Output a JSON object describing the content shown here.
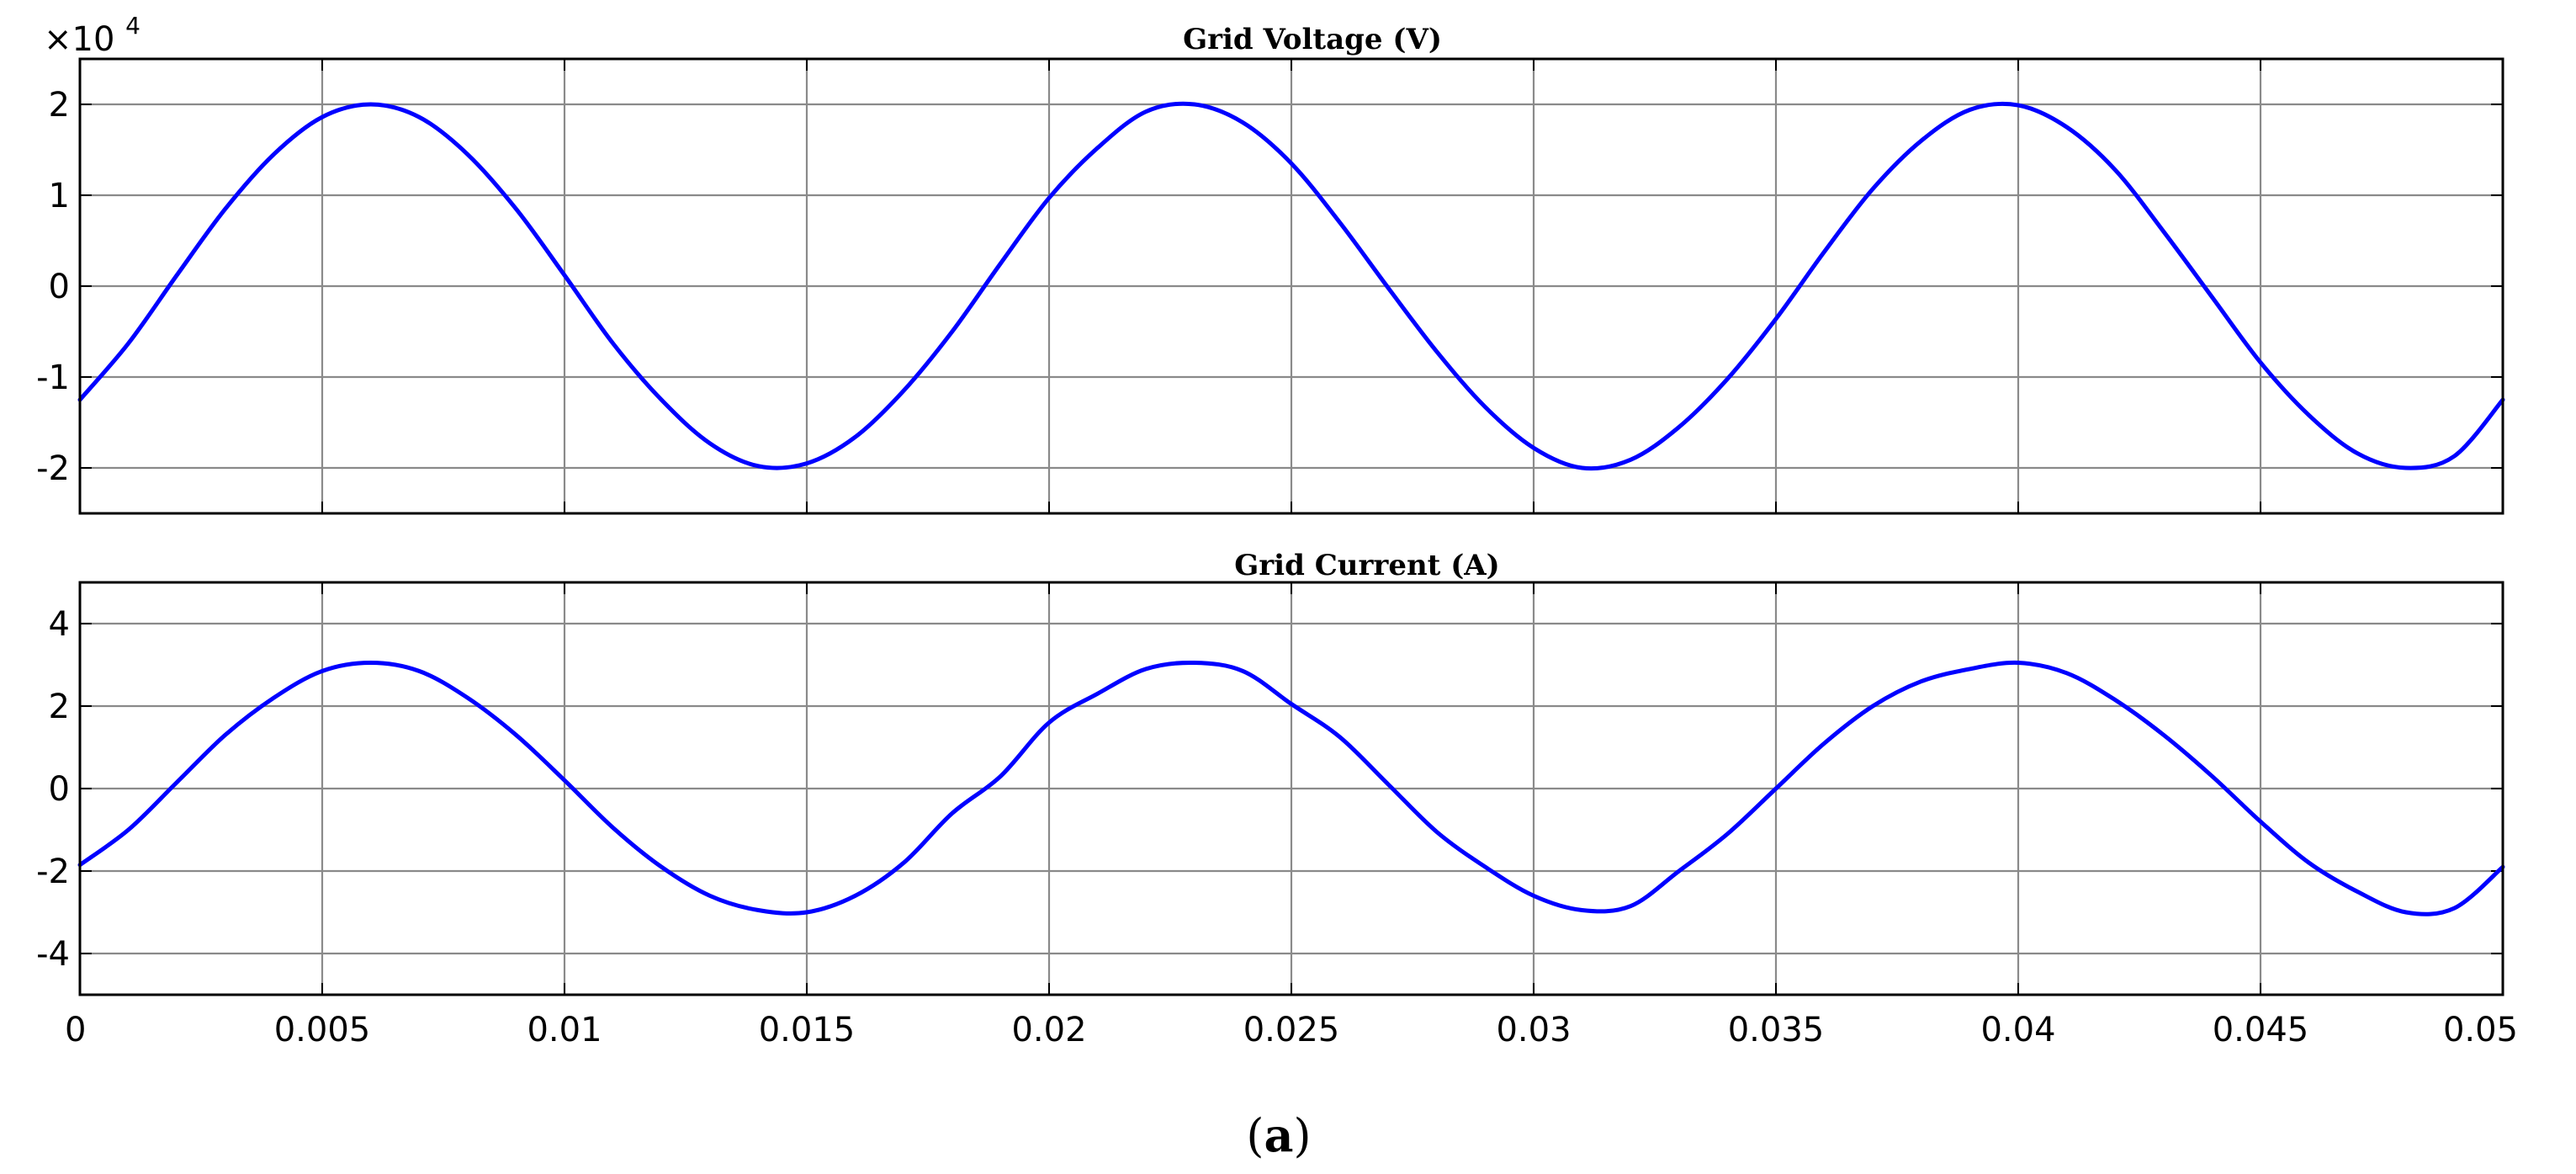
{
  "figure": {
    "caption_open": "(",
    "caption_letter": "a",
    "caption_close": ")"
  },
  "colors": {
    "series": "#0000ff",
    "grid": "#8a8a8a",
    "axes": "#000000"
  },
  "chart_data": [
    {
      "type": "line",
      "title": "Grid Voltage (V)",
      "xlabel": "",
      "ylabel": "",
      "y_multiplier": {
        "base": "×10",
        "exponent": "4"
      },
      "xlim": [
        0,
        0.05
      ],
      "ylim": [
        -2.5,
        2.5
      ],
      "x_ticks": [
        0,
        0.005,
        0.01,
        0.015,
        0.02,
        0.025,
        0.03,
        0.035,
        0.04,
        0.045,
        0.05
      ],
      "x_tick_labels_shown": false,
      "y_ticks": [
        -2,
        -1,
        0,
        1,
        2
      ],
      "y_tick_labels": [
        "-2",
        "-1",
        "0",
        "1",
        "2"
      ],
      "grid": true,
      "series": [
        {
          "color": "#0000ff",
          "x": [
            0,
            0.001,
            0.002,
            0.003,
            0.004,
            0.005,
            0.006,
            0.007,
            0.008,
            0.009,
            0.01,
            0.011,
            0.012,
            0.013,
            0.014,
            0.015,
            0.016,
            0.017,
            0.018,
            0.019,
            0.02,
            0.021,
            0.022,
            0.023,
            0.024,
            0.025,
            0.026,
            0.027,
            0.028,
            0.029,
            0.03,
            0.031,
            0.032,
            0.033,
            0.034,
            0.035,
            0.036,
            0.037,
            0.038,
            0.039,
            0.04,
            0.041,
            0.042,
            0.043,
            0.044,
            0.045,
            0.046,
            0.047,
            0.048,
            0.049,
            0.05
          ],
          "values": [
            -1.25,
            -0.63,
            0.12,
            0.85,
            1.45,
            1.86,
            2.0,
            1.86,
            1.45,
            0.85,
            0.12,
            -0.63,
            -1.25,
            -1.73,
            -1.98,
            -1.95,
            -1.66,
            -1.15,
            -0.5,
            0.25,
            0.97,
            1.52,
            1.92,
            2.0,
            1.8,
            1.35,
            0.7,
            -0.02,
            -0.72,
            -1.33,
            -1.78,
            -2.0,
            -1.91,
            -1.55,
            -1.02,
            -0.36,
            0.38,
            1.07,
            1.6,
            1.94,
            1.99,
            1.75,
            1.28,
            0.6,
            -0.12,
            -0.84,
            -1.42,
            -1.84,
            -2.0,
            -1.87,
            -1.25
          ]
        }
      ]
    },
    {
      "type": "line",
      "title": "Grid Current (A)",
      "xlabel": "",
      "ylabel": "",
      "xlim": [
        0,
        0.05
      ],
      "ylim": [
        -5,
        5
      ],
      "x_ticks": [
        0,
        0.005,
        0.01,
        0.015,
        0.02,
        0.025,
        0.03,
        0.035,
        0.04,
        0.045,
        0.05
      ],
      "x_tick_labels": [
        "0",
        "0.005",
        "0.01",
        "0.015",
        "0.02",
        "0.025",
        "0.03",
        "0.035",
        "0.04",
        "0.045",
        "0.05"
      ],
      "y_ticks": [
        -4,
        -2,
        0,
        2,
        4
      ],
      "y_tick_labels": [
        "-4",
        "-2",
        "0",
        "2",
        "4"
      ],
      "grid": true,
      "series": [
        {
          "color": "#0000ff",
          "x": [
            0,
            0.001,
            0.002,
            0.003,
            0.004,
            0.005,
            0.006,
            0.007,
            0.008,
            0.009,
            0.01,
            0.011,
            0.012,
            0.013,
            0.014,
            0.015,
            0.016,
            0.017,
            0.018,
            0.019,
            0.02,
            0.021,
            0.022,
            0.023,
            0.024,
            0.025,
            0.026,
            0.027,
            0.028,
            0.029,
            0.03,
            0.031,
            0.032,
            0.033,
            0.034,
            0.035,
            0.036,
            0.037,
            0.038,
            0.039,
            0.04,
            0.041,
            0.042,
            0.043,
            0.044,
            0.045,
            0.046,
            0.047,
            0.048,
            0.049,
            0.05
          ],
          "values": [
            -1.85,
            -1.0,
            0.15,
            1.3,
            2.2,
            2.85,
            3.05,
            2.85,
            2.2,
            1.3,
            0.2,
            -0.95,
            -1.9,
            -2.6,
            -2.95,
            -3.0,
            -2.6,
            -1.8,
            -0.6,
            0.3,
            1.6,
            2.3,
            2.9,
            3.05,
            2.85,
            2.05,
            1.25,
            0.1,
            -1.05,
            -1.9,
            -2.6,
            -2.95,
            -2.85,
            -2.0,
            -1.1,
            0.0,
            1.1,
            2.0,
            2.6,
            2.9,
            3.05,
            2.8,
            2.15,
            1.3,
            0.3,
            -0.8,
            -1.8,
            -2.5,
            -3.0,
            -2.9,
            -1.9
          ]
        }
      ]
    }
  ]
}
